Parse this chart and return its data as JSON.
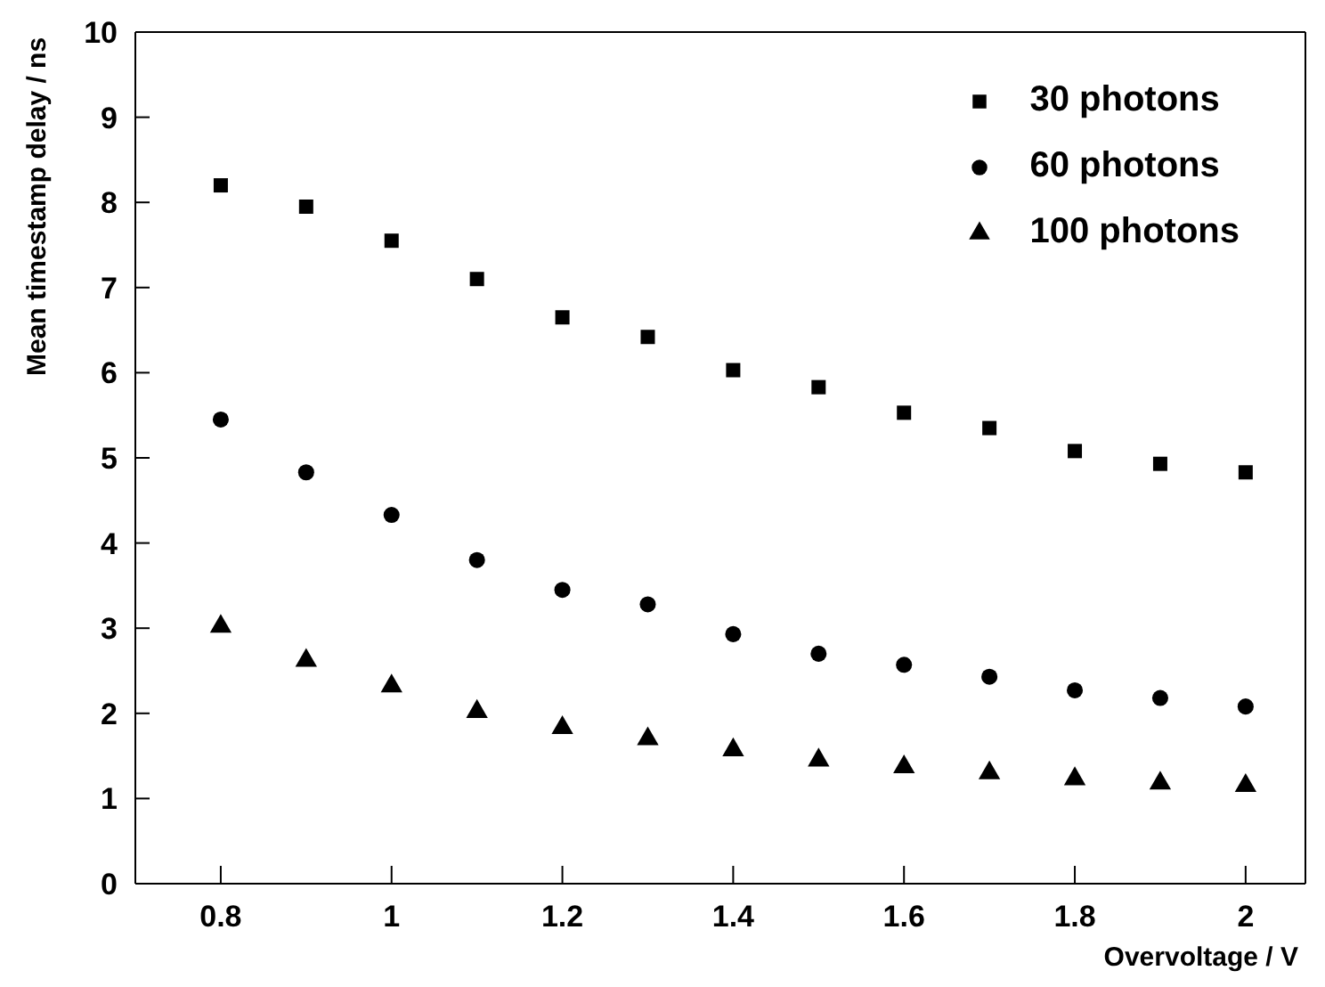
{
  "chart_data": {
    "type": "scatter",
    "xlabel": "Overvoltage / V",
    "ylabel": "Mean timestamp delay / ns",
    "x": [
      0.8,
      0.9,
      1.0,
      1.1,
      1.2,
      1.3,
      1.4,
      1.5,
      1.6,
      1.7,
      1.8,
      1.9,
      2.0
    ],
    "series": [
      {
        "name": "30 photons",
        "color": "#000000",
        "marker": "square",
        "values": [
          8.2,
          7.95,
          7.55,
          7.1,
          6.65,
          6.42,
          6.03,
          5.83,
          5.53,
          5.35,
          5.08,
          4.93,
          4.83
        ]
      },
      {
        "name": "60 photons",
        "color": "#000000",
        "marker": "circle",
        "values": [
          5.45,
          4.83,
          4.33,
          3.8,
          3.45,
          3.28,
          2.93,
          2.7,
          2.57,
          2.43,
          2.27,
          2.18,
          2.08
        ]
      },
      {
        "name": "100 photons",
        "color": "#000000",
        "marker": "triangle",
        "values": [
          3.02,
          2.62,
          2.32,
          2.02,
          1.83,
          1.7,
          1.57,
          1.45,
          1.37,
          1.3,
          1.23,
          1.18,
          1.15
        ]
      }
    ],
    "xlim": [
      0.7,
      2.07
    ],
    "xticks": [
      {
        "value": 0.8,
        "label": "0.8"
      },
      {
        "value": 1.0,
        "label": "1"
      },
      {
        "value": 1.2,
        "label": "1.2"
      },
      {
        "value": 1.4,
        "label": "1.4"
      },
      {
        "value": 1.6,
        "label": "1.6"
      },
      {
        "value": 1.8,
        "label": "1.8"
      },
      {
        "value": 2.0,
        "label": "2"
      }
    ],
    "ylim": [
      0,
      10
    ],
    "yticks": [
      0,
      1,
      2,
      3,
      4,
      5,
      6,
      7,
      8,
      9,
      10
    ],
    "legend": "top right"
  }
}
